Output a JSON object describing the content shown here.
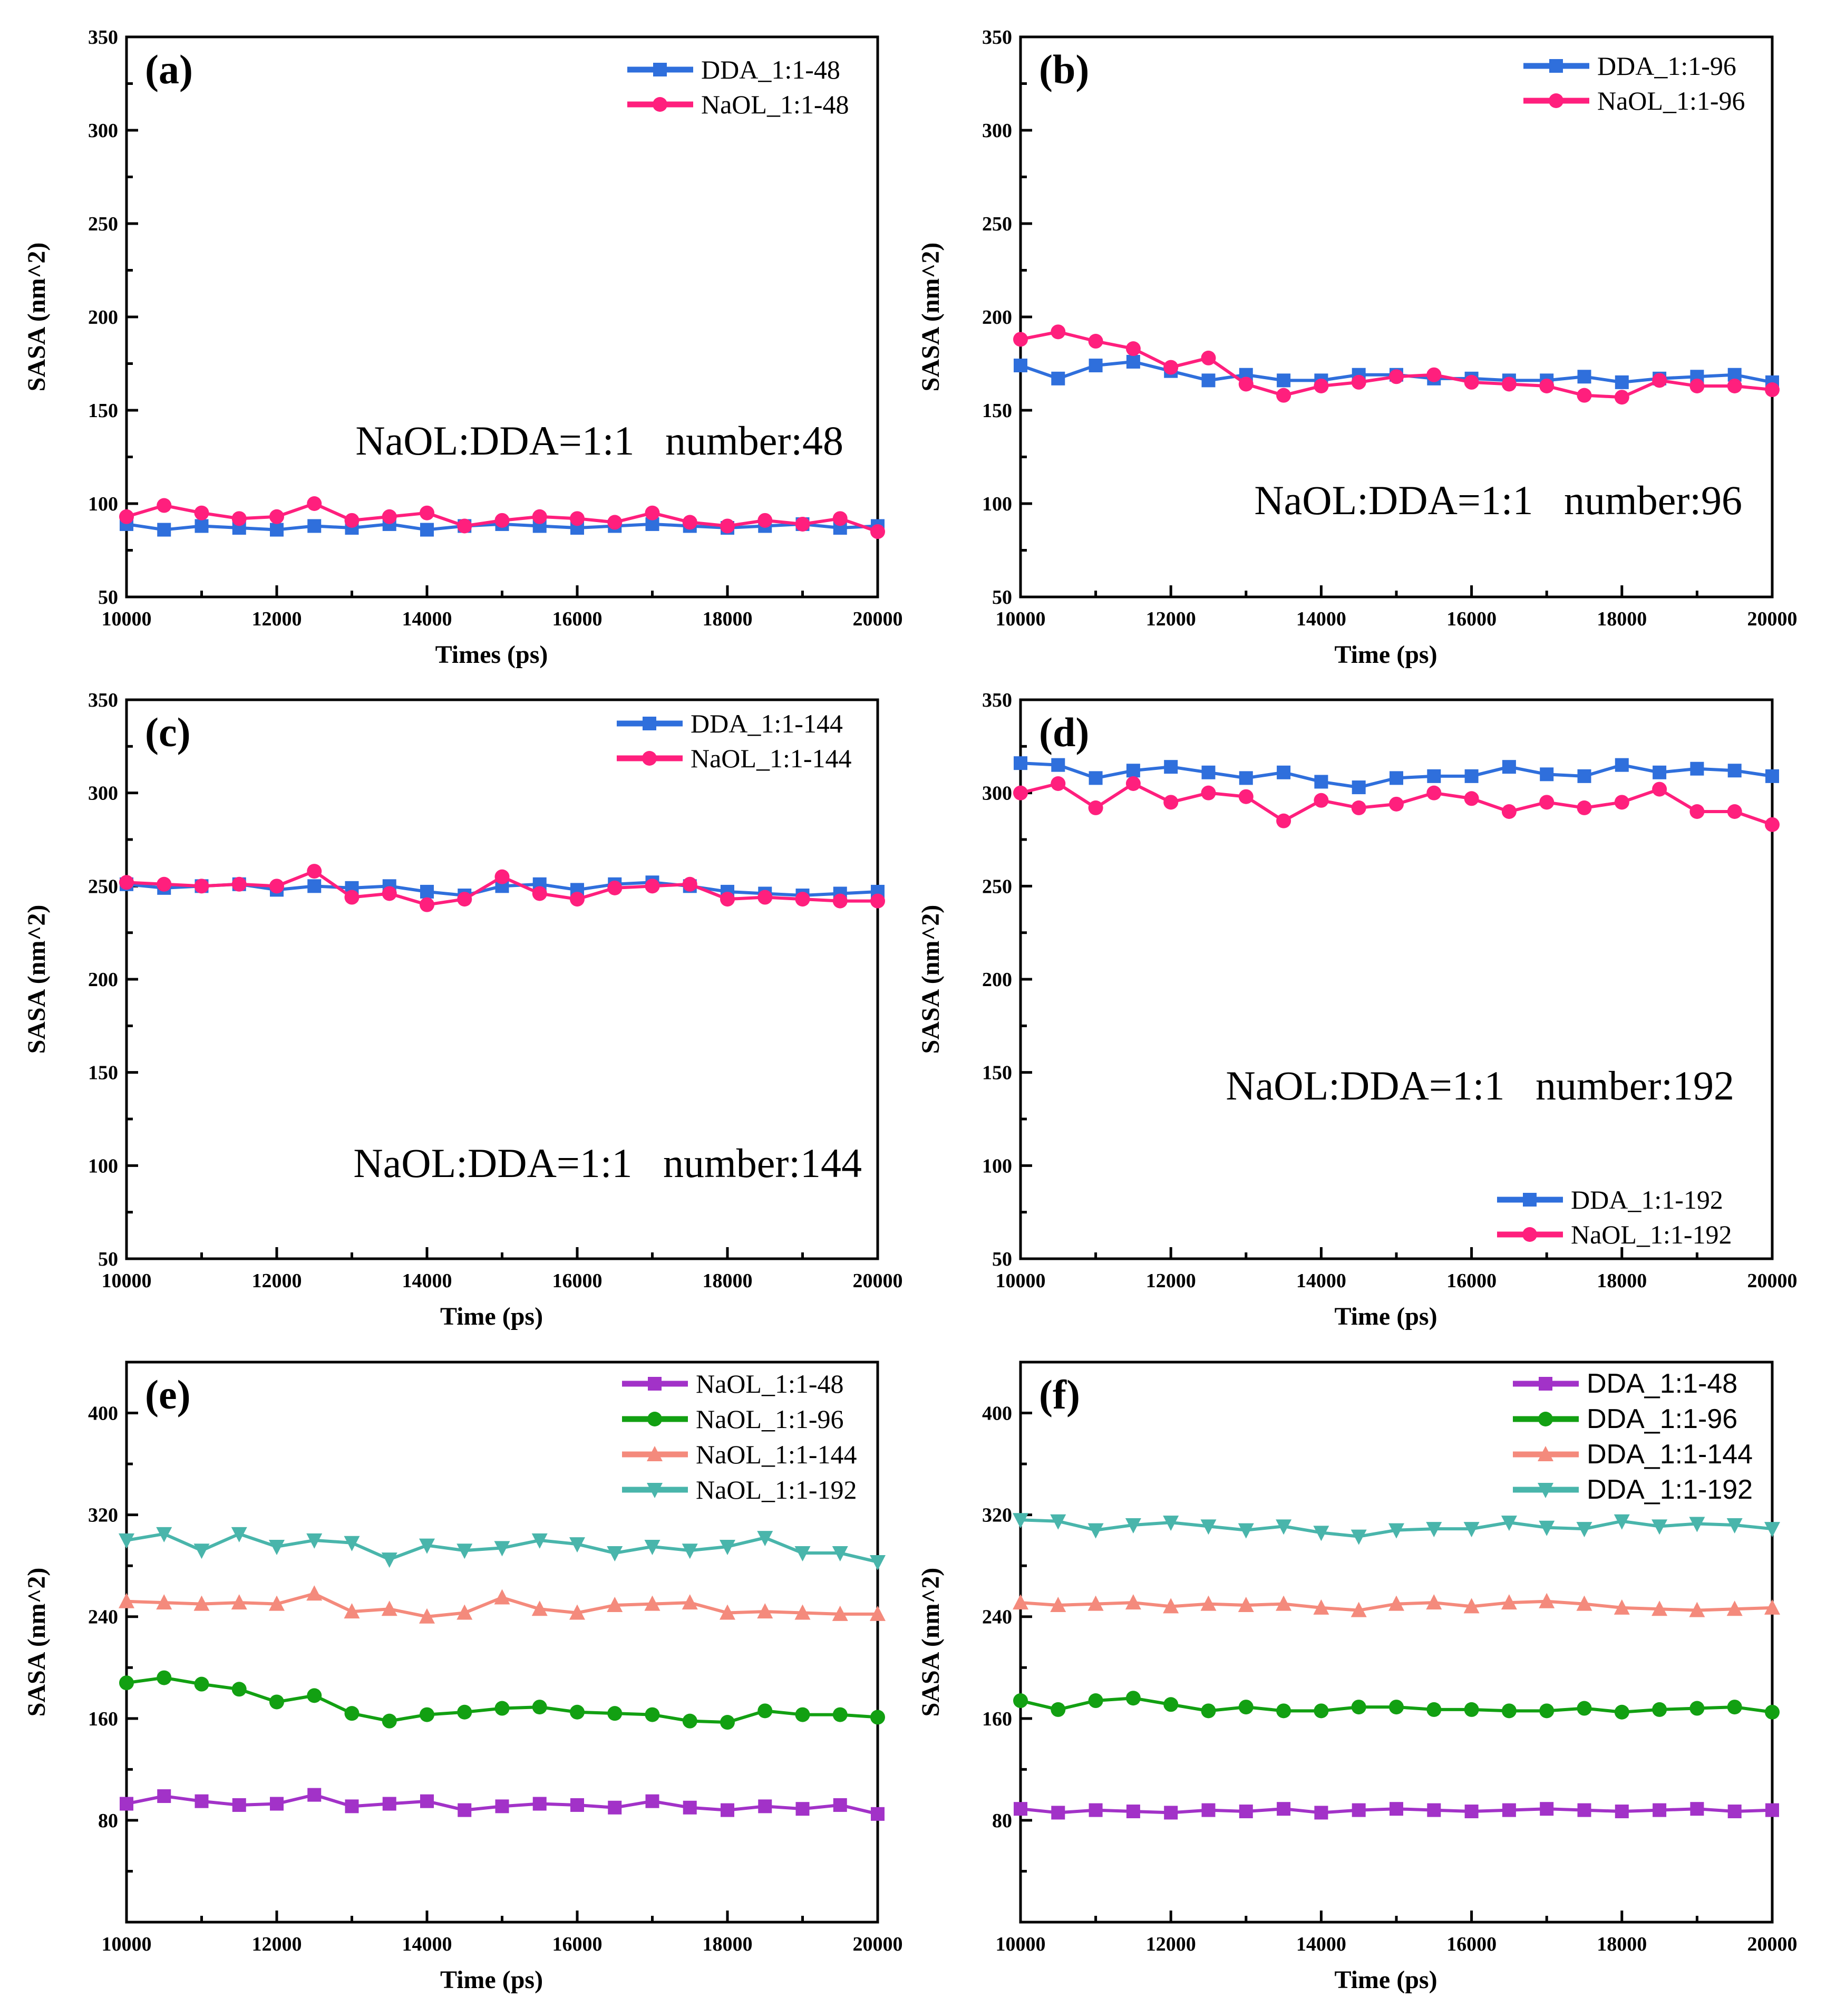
{
  "colors": {
    "blue": "#2f6fdc",
    "magenta": "#ff1f7d",
    "purple": "#a232c8",
    "green": "#12a012",
    "salmon": "#f48a7c",
    "teal": "#49b5ab"
  },
  "chart_data": [
    {
      "type": "line",
      "panel_label": "(a)",
      "xlabel": "Times (ps)",
      "ylabel": "SASA (nm^2)",
      "xlim": [
        10000,
        20000
      ],
      "ylim": [
        50,
        350
      ],
      "xticks": [
        10000,
        12000,
        14000,
        16000,
        18000,
        20000
      ],
      "yticks": [
        50,
        100,
        150,
        200,
        250,
        300,
        350
      ],
      "legend_position": "top-right",
      "annotation": "NaOL:DDA=1:1   number:48",
      "x": [
        10000,
        10500,
        11000,
        11500,
        12000,
        12500,
        13000,
        13500,
        14000,
        14500,
        15000,
        15500,
        16000,
        16500,
        17000,
        17500,
        18000,
        18500,
        19000,
        19500,
        20000
      ],
      "series": [
        {
          "name": "DDA_1:1-48",
          "color": "blue",
          "marker": "square",
          "values": [
            89,
            86,
            88,
            87,
            86,
            88,
            87,
            89,
            86,
            88,
            89,
            88,
            87,
            88,
            89,
            88,
            87,
            88,
            89,
            87,
            88
          ]
        },
        {
          "name": "NaOL_1:1-48",
          "color": "magenta",
          "marker": "circle",
          "values": [
            93,
            99,
            95,
            92,
            93,
            100,
            91,
            93,
            95,
            88,
            91,
            93,
            92,
            90,
            95,
            90,
            88,
            91,
            89,
            92,
            85
          ]
        }
      ]
    },
    {
      "type": "line",
      "panel_label": "(b)",
      "xlabel": "Time (ps)",
      "ylabel": "SASA (nm^2)",
      "xlim": [
        10000,
        20000
      ],
      "ylim": [
        50,
        350
      ],
      "xticks": [
        10000,
        12000,
        14000,
        16000,
        18000,
        20000
      ],
      "yticks": [
        50,
        100,
        150,
        200,
        250,
        300,
        350
      ],
      "legend_position": "top-right",
      "annotation": "NaOL:DDA=1:1   number:96",
      "x": [
        10000,
        10500,
        11000,
        11500,
        12000,
        12500,
        13000,
        13500,
        14000,
        14500,
        15000,
        15500,
        16000,
        16500,
        17000,
        17500,
        18000,
        18500,
        19000,
        19500,
        20000
      ],
      "series": [
        {
          "name": "DDA_1:1-96",
          "color": "blue",
          "marker": "square",
          "values": [
            174,
            167,
            174,
            176,
            171,
            166,
            169,
            166,
            166,
            169,
            169,
            167,
            167,
            166,
            166,
            168,
            165,
            167,
            168,
            169,
            165
          ]
        },
        {
          "name": "NaOL_1:1-96",
          "color": "magenta",
          "marker": "circle",
          "values": [
            188,
            192,
            187,
            183,
            173,
            178,
            164,
            158,
            163,
            165,
            168,
            169,
            165,
            164,
            163,
            158,
            157,
            166,
            163,
            163,
            161
          ]
        }
      ]
    },
    {
      "type": "line",
      "panel_label": "(c)",
      "xlabel": "Time (ps)",
      "ylabel": "SASA (nm^2)",
      "xlim": [
        10000,
        20000
      ],
      "ylim": [
        50,
        350
      ],
      "xticks": [
        10000,
        12000,
        14000,
        16000,
        18000,
        20000
      ],
      "yticks": [
        50,
        100,
        150,
        200,
        250,
        300,
        350
      ],
      "legend_position": "top-right",
      "annotation": "NaOL:DDA=1:1   number:144",
      "x": [
        10000,
        10500,
        11000,
        11500,
        12000,
        12500,
        13000,
        13500,
        14000,
        14500,
        15000,
        15500,
        16000,
        16500,
        17000,
        17500,
        18000,
        18500,
        19000,
        19500,
        20000
      ],
      "series": [
        {
          "name": "DDA_1:1-144",
          "color": "blue",
          "marker": "square",
          "values": [
            251,
            249,
            250,
            251,
            248,
            250,
            249,
            250,
            247,
            245,
            250,
            251,
            248,
            251,
            252,
            250,
            247,
            246,
            245,
            246,
            247
          ]
        },
        {
          "name": "NaOL_1:1-144",
          "color": "magenta",
          "marker": "circle",
          "values": [
            252,
            251,
            250,
            251,
            250,
            258,
            244,
            246,
            240,
            243,
            255,
            246,
            243,
            249,
            250,
            251,
            243,
            244,
            243,
            242,
            242
          ]
        }
      ]
    },
    {
      "type": "line",
      "panel_label": "(d)",
      "xlabel": "Time (ps)",
      "ylabel": "SASA (nm^2)",
      "xlim": [
        10000,
        20000
      ],
      "ylim": [
        50,
        350
      ],
      "xticks": [
        10000,
        12000,
        14000,
        16000,
        18000,
        20000
      ],
      "yticks": [
        50,
        100,
        150,
        200,
        250,
        300,
        350
      ],
      "legend_position": "bottom-right",
      "annotation": "NaOL:DDA=1:1   number:192",
      "x": [
        10000,
        10500,
        11000,
        11500,
        12000,
        12500,
        13000,
        13500,
        14000,
        14500,
        15000,
        15500,
        16000,
        16500,
        17000,
        17500,
        18000,
        18500,
        19000,
        19500,
        20000
      ],
      "series": [
        {
          "name": "DDA_1:1-192",
          "color": "blue",
          "marker": "square",
          "values": [
            316,
            315,
            308,
            312,
            314,
            311,
            308,
            311,
            306,
            303,
            308,
            309,
            309,
            314,
            310,
            309,
            315,
            311,
            313,
            312,
            309
          ]
        },
        {
          "name": "NaOL_1:1-192",
          "color": "magenta",
          "marker": "circle",
          "values": [
            300,
            305,
            292,
            305,
            295,
            300,
            298,
            285,
            296,
            292,
            294,
            300,
            297,
            290,
            295,
            292,
            295,
            302,
            290,
            290,
            283
          ]
        }
      ]
    },
    {
      "type": "line",
      "panel_label": "(e)",
      "xlabel": "Time (ps)",
      "ylabel": "SASA (nm^2)",
      "xlim": [
        10000,
        20000
      ],
      "ylim": [
        0,
        440
      ],
      "xticks": [
        10000,
        12000,
        14000,
        16000,
        18000,
        20000
      ],
      "yticks": [
        80,
        160,
        240,
        320,
        400
      ],
      "legend_position": "top-right",
      "annotation": "",
      "x": [
        10000,
        10500,
        11000,
        11500,
        12000,
        12500,
        13000,
        13500,
        14000,
        14500,
        15000,
        15500,
        16000,
        16500,
        17000,
        17500,
        18000,
        18500,
        19000,
        19500,
        20000
      ],
      "series": [
        {
          "name": "NaOL_1:1-48",
          "color": "purple",
          "marker": "square",
          "values": [
            93,
            99,
            95,
            92,
            93,
            100,
            91,
            93,
            95,
            88,
            91,
            93,
            92,
            90,
            95,
            90,
            88,
            91,
            89,
            92,
            85
          ]
        },
        {
          "name": "NaOL_1:1-96",
          "color": "green",
          "marker": "circle",
          "values": [
            188,
            192,
            187,
            183,
            173,
            178,
            164,
            158,
            163,
            165,
            168,
            169,
            165,
            164,
            163,
            158,
            157,
            166,
            163,
            163,
            161
          ]
        },
        {
          "name": "NaOL_1:1-144",
          "color": "salmon",
          "marker": "triangle-up",
          "values": [
            252,
            251,
            250,
            251,
            250,
            258,
            244,
            246,
            240,
            243,
            255,
            246,
            243,
            249,
            250,
            251,
            243,
            244,
            243,
            242,
            242
          ]
        },
        {
          "name": "NaOL_1:1-192",
          "color": "teal",
          "marker": "triangle-down",
          "values": [
            300,
            305,
            292,
            305,
            295,
            300,
            298,
            285,
            296,
            292,
            294,
            300,
            297,
            290,
            295,
            292,
            295,
            302,
            290,
            290,
            283
          ]
        }
      ]
    },
    {
      "type": "line",
      "panel_label": "(f)",
      "xlabel": "Time (ps)",
      "ylabel": "SASA (nm^2)",
      "xlim": [
        10000,
        20000
      ],
      "ylim": [
        0,
        440
      ],
      "xticks": [
        10000,
        12000,
        14000,
        16000,
        18000,
        20000
      ],
      "yticks": [
        80,
        160,
        240,
        320,
        400
      ],
      "legend_position": "top-right",
      "annotation": "",
      "x": [
        10000,
        10500,
        11000,
        11500,
        12000,
        12500,
        13000,
        13500,
        14000,
        14500,
        15000,
        15500,
        16000,
        16500,
        17000,
        17500,
        18000,
        18500,
        19000,
        19500,
        20000
      ],
      "series": [
        {
          "name": "DDA_1:1-48",
          "color": "purple",
          "marker": "square",
          "values": [
            89,
            86,
            88,
            87,
            86,
            88,
            87,
            89,
            86,
            88,
            89,
            88,
            87,
            88,
            89,
            88,
            87,
            88,
            89,
            87,
            88
          ]
        },
        {
          "name": "DDA_1:1-96",
          "color": "green",
          "marker": "circle",
          "values": [
            174,
            167,
            174,
            176,
            171,
            166,
            169,
            166,
            166,
            169,
            169,
            167,
            167,
            166,
            166,
            168,
            165,
            167,
            168,
            169,
            165
          ]
        },
        {
          "name": "DDA_1:1-144",
          "color": "salmon",
          "marker": "triangle-up",
          "values": [
            251,
            249,
            250,
            251,
            248,
            250,
            249,
            250,
            247,
            245,
            250,
            251,
            248,
            251,
            252,
            250,
            247,
            246,
            245,
            246,
            247
          ]
        },
        {
          "name": "DDA_1:1-192",
          "color": "teal",
          "marker": "triangle-down",
          "values": [
            316,
            315,
            308,
            312,
            314,
            311,
            308,
            311,
            306,
            303,
            308,
            309,
            309,
            314,
            310,
            309,
            315,
            311,
            313,
            312,
            309
          ]
        }
      ]
    }
  ]
}
